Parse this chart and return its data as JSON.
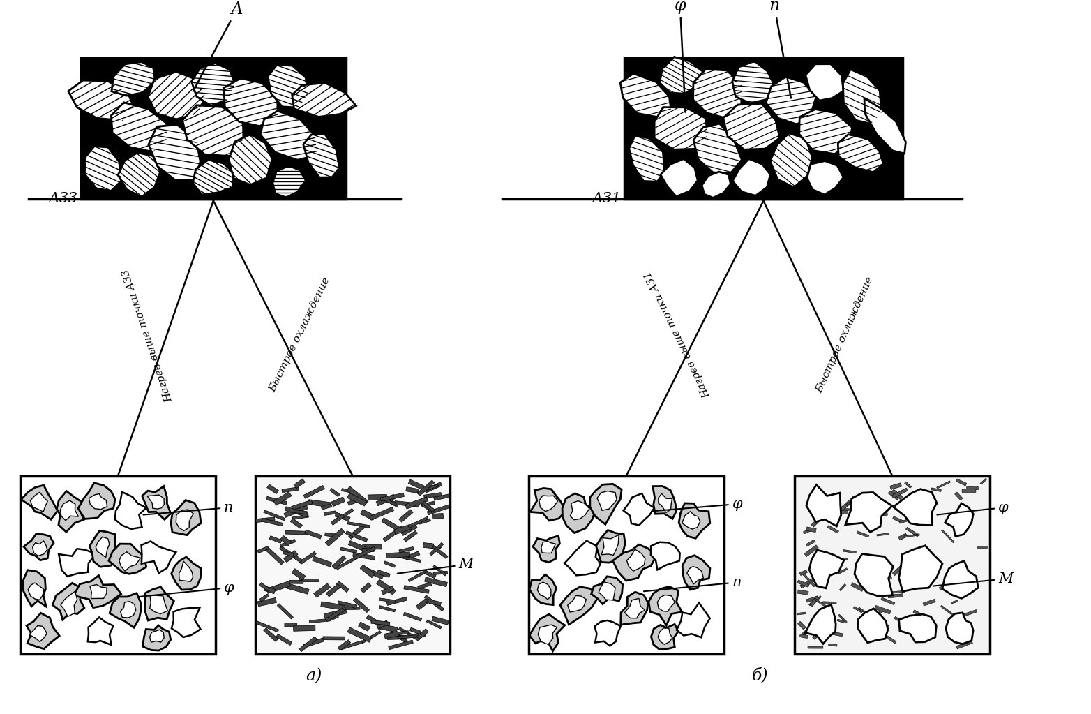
{
  "fig_width": 15.64,
  "fig_height": 10.23,
  "bg_color": "white",
  "left_label": "АЗ3",
  "right_label": "АЗ1",
  "left_top_label": "А",
  "right_top_label_phi": "φ",
  "right_top_label_p": "п",
  "left_heat_label": "Нагрев выше точки АЗ3",
  "left_cool_label": "Быстрое охлаждение",
  "right_heat_label": "Нагрев выше точки АЗ1",
  "right_cool_label": "Быстрое охлаждение",
  "label_a": "а)",
  "label_b": "б)",
  "lbl_p": "п",
  "lbl_phi": "φ",
  "lbl_M": "М"
}
